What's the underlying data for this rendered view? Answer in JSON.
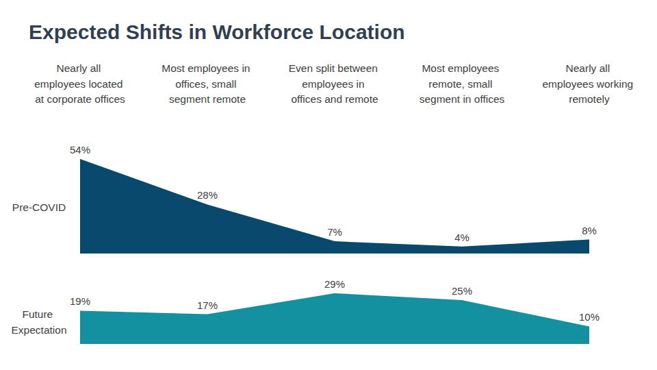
{
  "chart_data": {
    "type": "area",
    "title": "Expected Shifts in Workforce Location",
    "categories": [
      "Nearly all\nemployees located\nat corporate offices",
      "Most employees in\noffices, small\nsegment remote",
      "Even split between\nemployees in\noffices and remote",
      "Most employees\nremote, small\nsegment in offices",
      "Nearly all\nemployees working\nremotely"
    ],
    "series": [
      {
        "name": "Pre-COVID",
        "color": "#08496d",
        "values": [
          54,
          28,
          7,
          4,
          8
        ],
        "value_labels": [
          "54%",
          "28%",
          "7%",
          "4%",
          "8%"
        ]
      },
      {
        "name": "Future\nExpectation",
        "color": "#1491a0",
        "values": [
          19,
          17,
          29,
          25,
          10
        ],
        "value_labels": [
          "19%",
          "17%",
          "29%",
          "25%",
          "10%"
        ]
      }
    ],
    "data_labels": true,
    "tick_labels": "x"
  }
}
